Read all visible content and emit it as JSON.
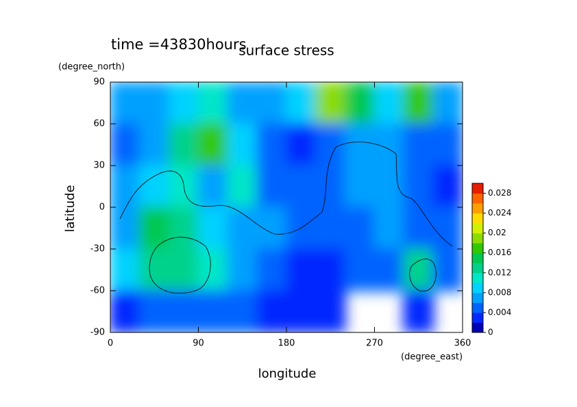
{
  "chart_data": {
    "type": "heatmap",
    "title": "surface stress",
    "subtitle": "time =43830hours",
    "x_label": "longitude",
    "y_label": "latitude",
    "x_unit": "(degree_east)",
    "y_unit": "(degree_north)",
    "xlim": [
      0,
      360
    ],
    "xticks": [
      0,
      90,
      180,
      270,
      360
    ],
    "ylim": [
      -90,
      90
    ],
    "yticks": [
      -90,
      -60,
      -30,
      0,
      30,
      60,
      90
    ],
    "z": [
      [
        0.006,
        0.006,
        0.008,
        0.01,
        0.006,
        0.006,
        0.008,
        0.018,
        0.014,
        0.008,
        0.016,
        0.006
      ],
      [
        0.004,
        0.006,
        0.012,
        0.016,
        0.008,
        0.004,
        0.002,
        0.004,
        0.006,
        0.006,
        0.004,
        0.004
      ],
      [
        0.006,
        0.008,
        0.01,
        0.006,
        0.01,
        0.004,
        0.004,
        0.004,
        0.006,
        0.006,
        0.004,
        0.002
      ],
      [
        0.006,
        0.014,
        0.012,
        0.008,
        0.006,
        0.006,
        0.004,
        0.004,
        0.004,
        0.006,
        0.004,
        0.004
      ],
      [
        0.008,
        0.012,
        0.012,
        0.01,
        0.006,
        0.004,
        0.002,
        0.002,
        0.004,
        0.004,
        0.012,
        0.004
      ],
      [
        0.002,
        0.004,
        0.004,
        0.004,
        0.004,
        0.002,
        0.002,
        0.002,
        0,
        0,
        0.002,
        0
      ]
    ],
    "zlim": [
      0,
      0.03
    ],
    "zticks": [
      0,
      0.004,
      0.008,
      0.012,
      0.016,
      0.02,
      0.024,
      0.028
    ],
    "colors": [
      "#0000b4",
      "#0028ff",
      "#0064ff",
      "#00a0ff",
      "#00d2ff",
      "#00e6c8",
      "#00d28c",
      "#00c850",
      "#32c800",
      "#8cdc00",
      "#d2f000",
      "#ffdc00",
      "#ffa000",
      "#ff6400",
      "#e61e00"
    ]
  }
}
